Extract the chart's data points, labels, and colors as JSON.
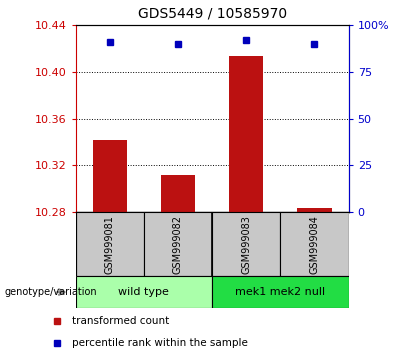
{
  "title": "GDS5449 / 10585970",
  "samples": [
    "GSM999081",
    "GSM999082",
    "GSM999083",
    "GSM999084"
  ],
  "red_values": [
    10.342,
    10.312,
    10.413,
    10.284
  ],
  "blue_values": [
    91.0,
    90.0,
    92.0,
    90.0
  ],
  "ymin": 10.28,
  "ymax": 10.44,
  "yticks": [
    10.28,
    10.32,
    10.36,
    10.4,
    10.44
  ],
  "y2min": 0,
  "y2max": 100,
  "y2ticks": [
    0,
    25,
    50,
    75,
    100
  ],
  "groups": [
    {
      "label": "wild type",
      "indices": [
        0,
        1
      ],
      "color": "#aaffaa"
    },
    {
      "label": "mek1 mek2 null",
      "indices": [
        2,
        3
      ],
      "color": "#22dd44"
    }
  ],
  "bar_color": "#BB1111",
  "dot_color": "#0000BB",
  "bar_base": 10.28,
  "group_label": "genotype/variation",
  "legend_red": "transformed count",
  "legend_blue": "percentile rank within the sample",
  "left_color": "#CC0000",
  "right_color": "#0000CC",
  "sample_box_color": "#C8C8C8",
  "bar_width": 0.5
}
